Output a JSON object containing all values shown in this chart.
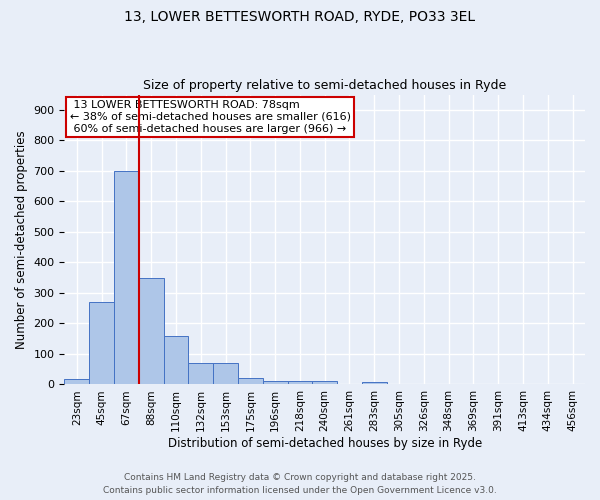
{
  "title1": "13, LOWER BETTESWORTH ROAD, RYDE, PO33 3EL",
  "title2": "Size of property relative to semi-detached houses in Ryde",
  "xlabel": "Distribution of semi-detached houses by size in Ryde",
  "ylabel": "Number of semi-detached properties",
  "property_label": "13 LOWER BETTESWORTH ROAD: 78sqm",
  "pct_smaller": 38,
  "n_smaller": 616,
  "pct_larger": 60,
  "n_larger": 966,
  "bin_labels": [
    "23sqm",
    "45sqm",
    "67sqm",
    "88sqm",
    "110sqm",
    "132sqm",
    "153sqm",
    "175sqm",
    "196sqm",
    "218sqm",
    "240sqm",
    "261sqm",
    "283sqm",
    "305sqm",
    "326sqm",
    "348sqm",
    "369sqm",
    "391sqm",
    "413sqm",
    "434sqm",
    "456sqm"
  ],
  "bin_values": [
    18,
    270,
    700,
    350,
    160,
    70,
    70,
    22,
    12,
    12,
    10,
    0,
    8,
    0,
    0,
    0,
    0,
    0,
    0,
    0,
    0
  ],
  "bar_color": "#aec6e8",
  "bar_edge_color": "#4472c4",
  "vline_x_index": 2.5,
  "vline_color": "#cc0000",
  "background_color": "#e8eef8",
  "grid_color": "#ffffff",
  "annotation_box_color": "#cc0000",
  "footer1": "Contains HM Land Registry data © Crown copyright and database right 2025.",
  "footer2": "Contains public sector information licensed under the Open Government Licence v3.0.",
  "ylim": [
    0,
    950
  ],
  "yticks": [
    0,
    100,
    200,
    300,
    400,
    500,
    600,
    700,
    800,
    900
  ]
}
